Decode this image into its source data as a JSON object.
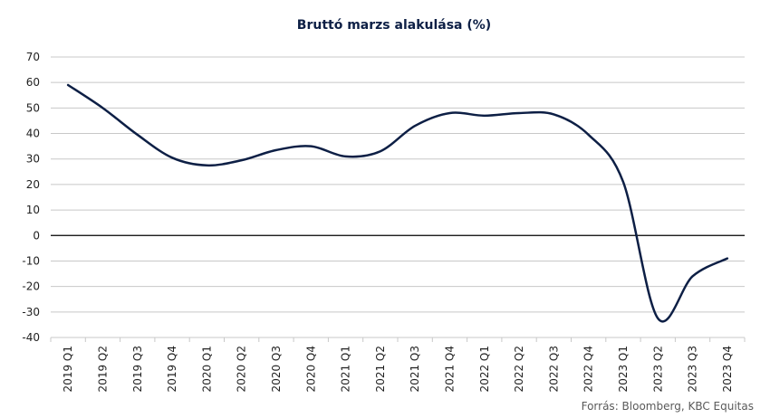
{
  "chart_data": {
    "type": "line",
    "title": "Bruttó marzs alakulása (%)",
    "categories": [
      "2019 Q1",
      "2019 Q2",
      "2019 Q3",
      "2019 Q4",
      "2020 Q1",
      "2020 Q2",
      "2020 Q3",
      "2020 Q4",
      "2021 Q1",
      "2021 Q2",
      "2021 Q3",
      "2021 Q4",
      "2022 Q1",
      "2022 Q2",
      "2022 Q3",
      "2022 Q4",
      "2023 Q1",
      "2023 Q2",
      "2023 Q3",
      "2023 Q4"
    ],
    "series": [
      {
        "values": [
          59,
          50,
          39.5,
          30.5,
          27.5,
          29.5,
          33.5,
          35,
          31,
          33,
          43,
          48,
          47,
          48,
          47.5,
          39.5,
          21,
          -32.5,
          -16,
          -9
        ]
      }
    ],
    "ylim": [
      -40,
      70
    ],
    "yticks": [
      70,
      60,
      50,
      40,
      30,
      20,
      10,
      0,
      -10,
      -20,
      -30,
      -40
    ],
    "grid": true,
    "legend": "none",
    "colors": {
      "line": "#0d1f45",
      "grid": "#c8c8c8",
      "zero_line": "#000000"
    }
  },
  "source": "Forrás: Bloomberg, KBC Equitas"
}
